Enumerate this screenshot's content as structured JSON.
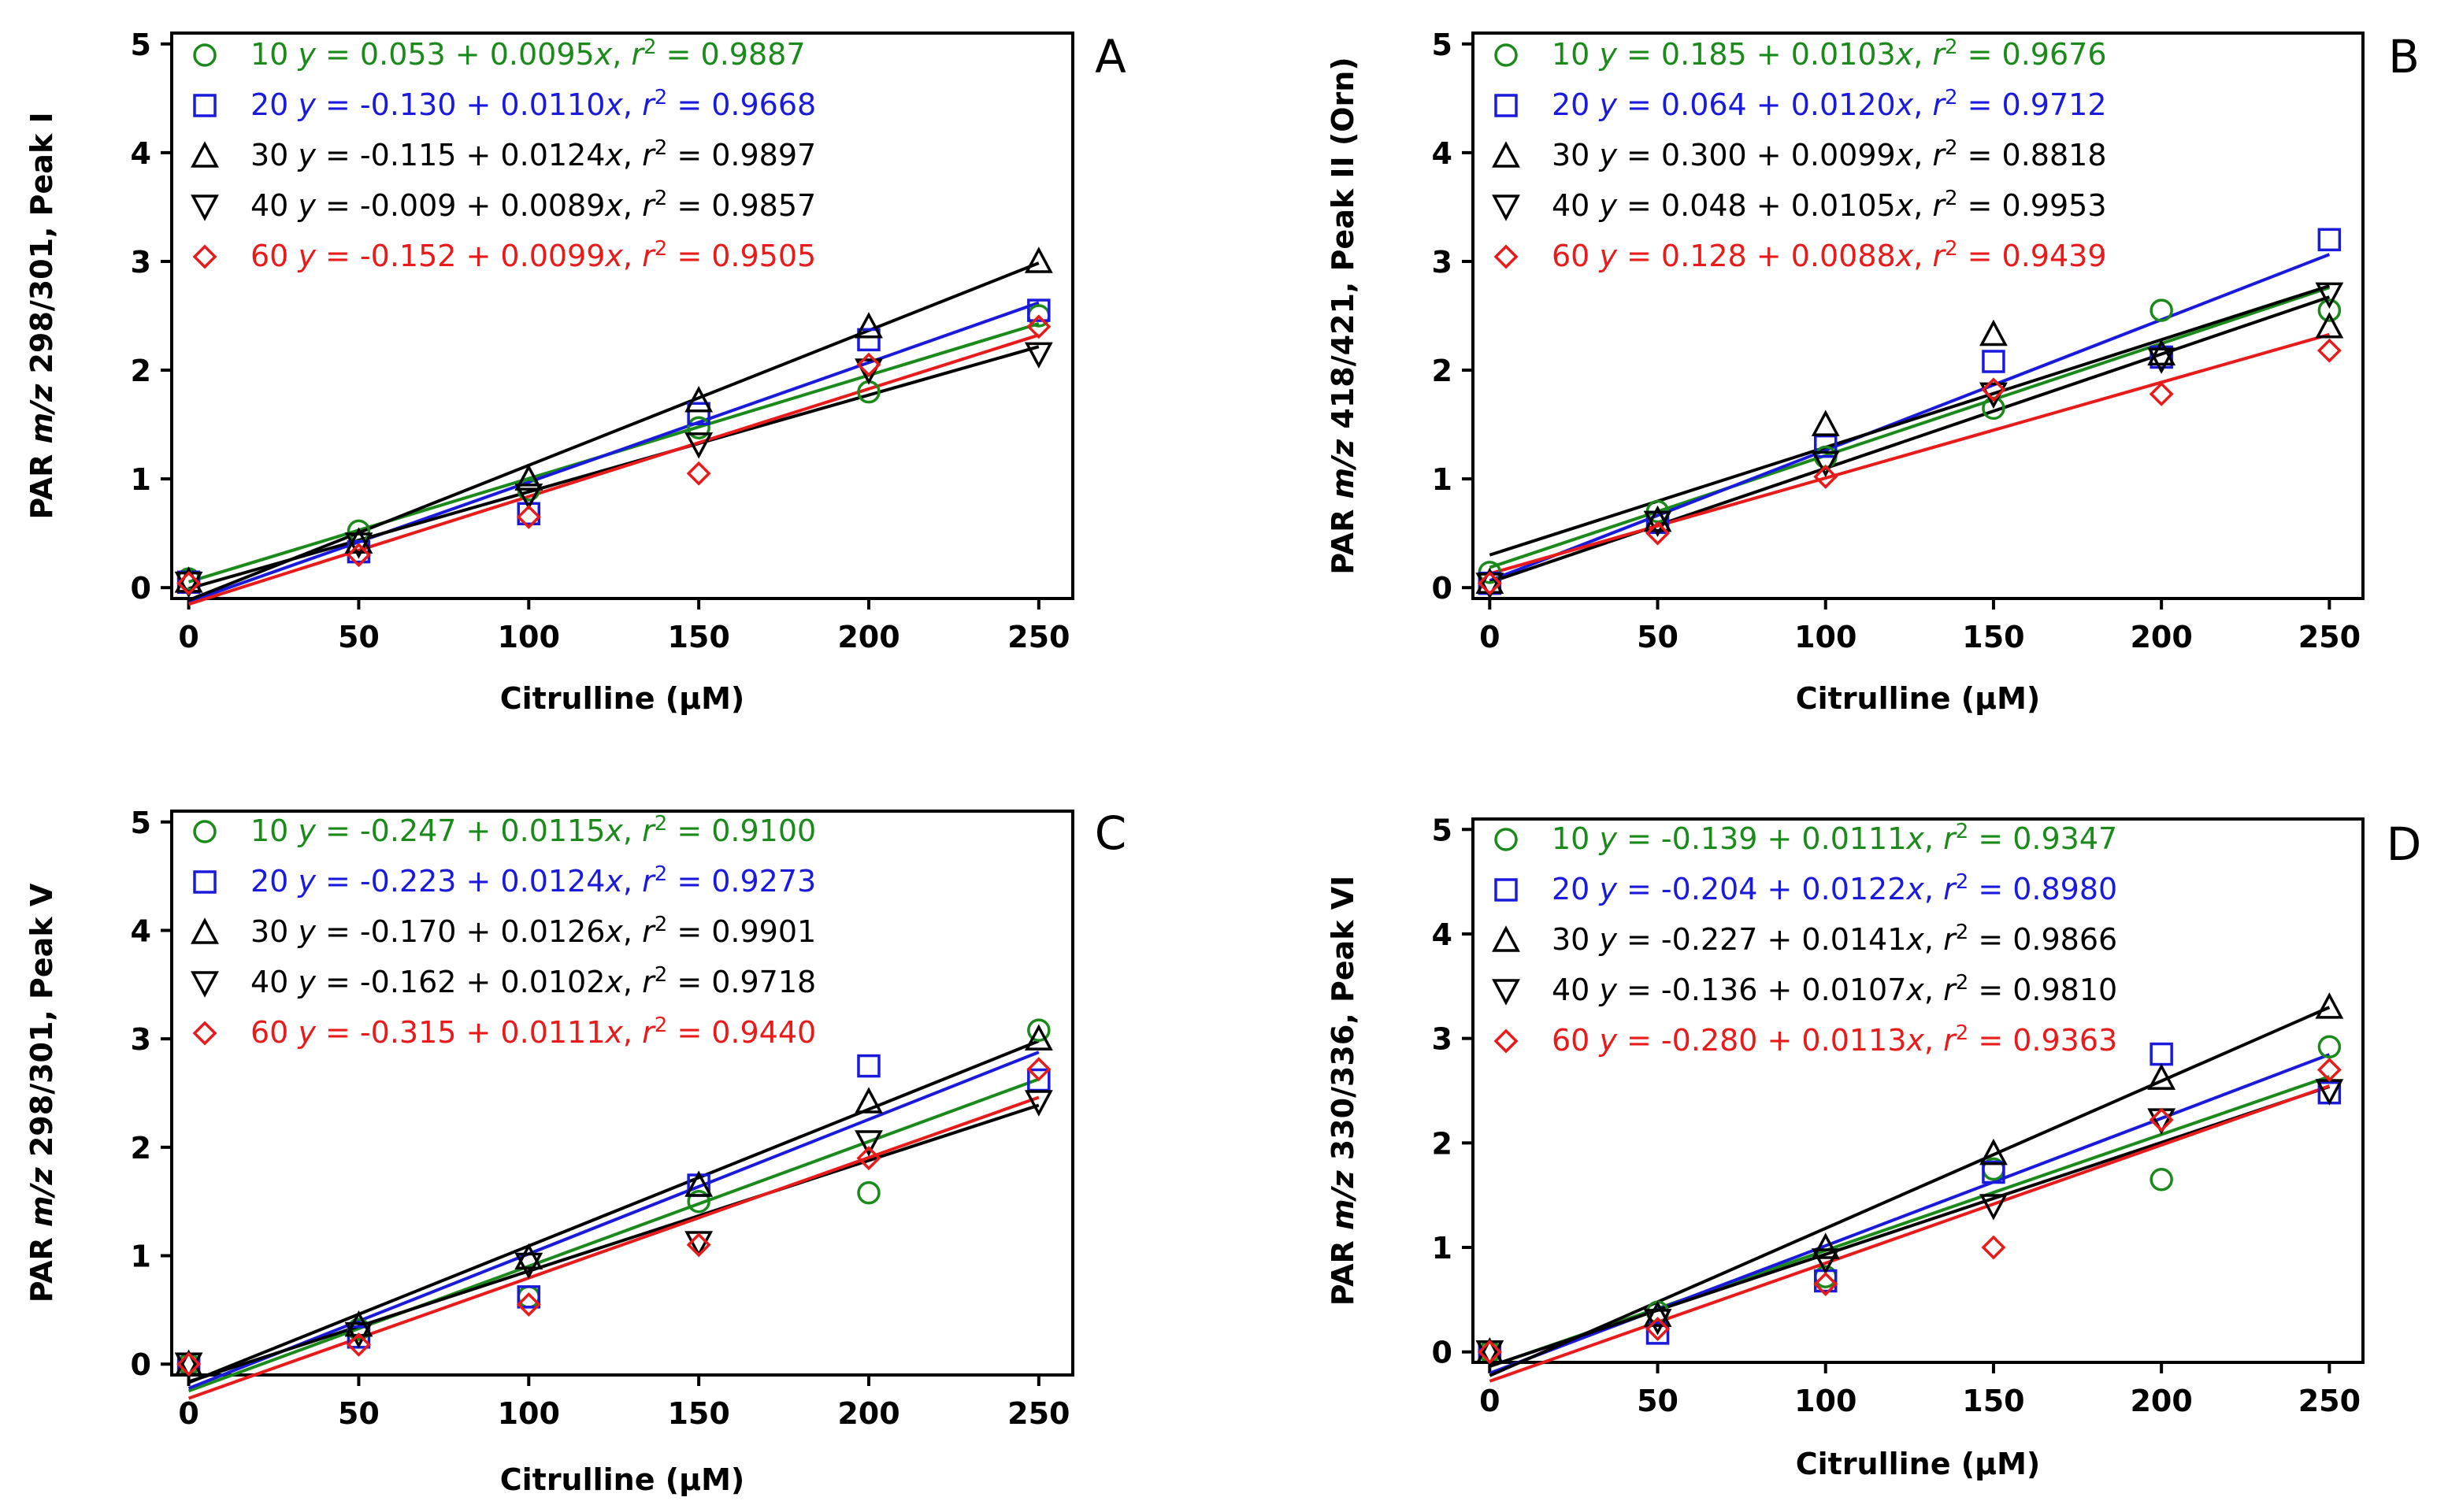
{
  "chart_data": [
    {
      "type": "scatter",
      "panel": "A",
      "xlabel": "Citrulline (µM)",
      "ylabel_parts": [
        "PAR ",
        "m/z",
        " 298/301, Peak I"
      ],
      "xlim": [
        -5,
        260
      ],
      "ylim": [
        -0.1,
        5.1
      ],
      "xticks": [
        0,
        50,
        100,
        150,
        200,
        250
      ],
      "yticks": [
        0,
        1,
        2,
        3,
        4,
        5
      ],
      "x": [
        0,
        50,
        100,
        150,
        200,
        250
      ],
      "series": [
        {
          "name": "10",
          "marker": "circle",
          "color": "#1a8a1a",
          "legend": {
            "label": "10",
            "intercept": "0.053",
            "slope": "0.0095",
            "r2": "0.9887"
          },
          "intercept": 0.053,
          "slope": 0.0095,
          "values": [
            0.08,
            0.52,
            0.9,
            1.47,
            1.8,
            2.5
          ]
        },
        {
          "name": "20",
          "marker": "square",
          "color": "#1a1adc",
          "legend": {
            "label": "20",
            "intercept": "-0.130",
            "slope": "0.0110",
            "r2": "0.9668"
          },
          "intercept": -0.13,
          "slope": 0.011,
          "values": [
            0.05,
            0.33,
            0.68,
            1.6,
            2.28,
            2.55
          ]
        },
        {
          "name": "30",
          "marker": "triangle-up",
          "color": "#000000",
          "legend": {
            "label": "30",
            "intercept": "-0.115",
            "slope": "0.0124",
            "r2": "0.9897"
          },
          "intercept": -0.115,
          "slope": 0.0124,
          "values": [
            0.06,
            0.42,
            1.0,
            1.72,
            2.4,
            3.0
          ]
        },
        {
          "name": "40",
          "marker": "triangle-down",
          "color": "#000000",
          "legend": {
            "label": "40",
            "intercept": "-0.009",
            "slope": "0.0089",
            "r2": "0.9857"
          },
          "intercept": -0.009,
          "slope": 0.0089,
          "values": [
            0.04,
            0.4,
            0.85,
            1.32,
            2.0,
            2.15
          ]
        },
        {
          "name": "60",
          "marker": "diamond",
          "color": "#e81a1a",
          "legend": {
            "label": "60",
            "intercept": "-0.152",
            "slope": "0.0099",
            "r2": "0.9505"
          },
          "intercept": -0.152,
          "slope": 0.0099,
          "values": [
            0.04,
            0.3,
            0.65,
            1.05,
            2.05,
            2.4
          ]
        }
      ]
    },
    {
      "type": "scatter",
      "panel": "B",
      "xlabel": "Citrulline (µM)",
      "ylabel_parts": [
        "PAR ",
        "m/z",
        " 418/421, Peak II (Orn)"
      ],
      "xlim": [
        -5,
        260
      ],
      "ylim": [
        -0.1,
        5.1
      ],
      "xticks": [
        0,
        50,
        100,
        150,
        200,
        250
      ],
      "yticks": [
        0,
        1,
        2,
        3,
        4,
        5
      ],
      "x": [
        0,
        50,
        100,
        150,
        200,
        250
      ],
      "series": [
        {
          "name": "10",
          "marker": "circle",
          "color": "#1a8a1a",
          "legend": {
            "label": "10",
            "intercept": "0.185",
            "slope": "0.0103",
            "r2": "0.9676"
          },
          "intercept": 0.185,
          "slope": 0.0103,
          "values": [
            0.14,
            0.7,
            1.2,
            1.65,
            2.55,
            2.55
          ]
        },
        {
          "name": "20",
          "marker": "square",
          "color": "#1a1adc",
          "legend": {
            "label": "20",
            "intercept": "0.064",
            "slope": "0.0120",
            "r2": "0.9712"
          },
          "intercept": 0.064,
          "slope": 0.012,
          "values": [
            0.04,
            0.6,
            1.3,
            2.08,
            2.12,
            3.2
          ]
        },
        {
          "name": "30",
          "marker": "triangle-up",
          "color": "#000000",
          "legend": {
            "label": "30",
            "intercept": "0.300",
            "slope": "0.0099",
            "r2": "0.8818"
          },
          "intercept": 0.3,
          "slope": 0.0099,
          "values": [
            0.05,
            0.62,
            1.5,
            2.33,
            2.15,
            2.4
          ]
        },
        {
          "name": "40",
          "marker": "triangle-down",
          "color": "#000000",
          "legend": {
            "label": "40",
            "intercept": "0.048",
            "slope": "0.0105",
            "r2": "0.9953"
          },
          "intercept": 0.048,
          "slope": 0.0105,
          "values": [
            0.03,
            0.6,
            1.15,
            1.78,
            2.1,
            2.7
          ]
        },
        {
          "name": "60",
          "marker": "diamond",
          "color": "#e81a1a",
          "legend": {
            "label": "60",
            "intercept": "0.128",
            "slope": "0.0088",
            "r2": "0.9439"
          },
          "intercept": 0.128,
          "slope": 0.0088,
          "values": [
            0.04,
            0.5,
            1.02,
            1.82,
            1.78,
            2.18
          ]
        }
      ]
    },
    {
      "type": "scatter",
      "panel": "C",
      "xlabel": "Citrulline (µM)",
      "ylabel_parts": [
        "PAR ",
        "m/z",
        " 298/301, Peak V"
      ],
      "xlim": [
        -5,
        260
      ],
      "ylim": [
        -0.1,
        5.1
      ],
      "xticks": [
        0,
        50,
        100,
        150,
        200,
        250
      ],
      "yticks": [
        0,
        1,
        2,
        3,
        4,
        5
      ],
      "x": [
        0,
        50,
        100,
        150,
        200,
        250
      ],
      "series": [
        {
          "name": "10",
          "marker": "circle",
          "color": "#1a8a1a",
          "legend": {
            "label": "10",
            "intercept": "-0.247",
            "slope": "0.0115",
            "r2": "0.9100"
          },
          "intercept": -0.247,
          "slope": 0.0115,
          "values": [
            0.0,
            0.32,
            0.62,
            1.5,
            1.58,
            3.08
          ]
        },
        {
          "name": "20",
          "marker": "square",
          "color": "#1a1adc",
          "legend": {
            "label": "20",
            "intercept": "-0.223",
            "slope": "0.0124",
            "r2": "0.9273"
          },
          "intercept": -0.223,
          "slope": 0.0124,
          "values": [
            0.0,
            0.25,
            0.62,
            1.65,
            2.75,
            2.62
          ]
        },
        {
          "name": "30",
          "marker": "triangle-up",
          "color": "#000000",
          "legend": {
            "label": "30",
            "intercept": "-0.170",
            "slope": "0.0126",
            "r2": "0.9901"
          },
          "intercept": -0.17,
          "slope": 0.0126,
          "values": [
            0.0,
            0.36,
            0.98,
            1.65,
            2.42,
            3.0
          ]
        },
        {
          "name": "40",
          "marker": "triangle-down",
          "color": "#000000",
          "legend": {
            "label": "40",
            "intercept": "-0.162",
            "slope": "0.0102",
            "r2": "0.9718"
          },
          "intercept": -0.162,
          "slope": 0.0102,
          "values": [
            0.0,
            0.28,
            0.92,
            1.12,
            2.05,
            2.42
          ]
        },
        {
          "name": "60",
          "marker": "diamond",
          "color": "#e81a1a",
          "legend": {
            "label": "60",
            "intercept": "-0.315",
            "slope": "0.0111",
            "r2": "0.9440"
          },
          "intercept": -0.315,
          "slope": 0.0111,
          "values": [
            0.0,
            0.18,
            0.55,
            1.1,
            1.9,
            2.72
          ]
        }
      ]
    },
    {
      "type": "scatter",
      "panel": "D",
      "xlabel": "Citrulline (µM)",
      "ylabel_parts": [
        "PAR ",
        "m/z",
        " 330/336, Peak VI"
      ],
      "xlim": [
        -5,
        260
      ],
      "ylim": [
        -0.1,
        5.1
      ],
      "xticks": [
        0,
        50,
        100,
        150,
        200,
        250
      ],
      "yticks": [
        0,
        1,
        2,
        3,
        4,
        5
      ],
      "x": [
        0,
        50,
        100,
        150,
        200,
        250
      ],
      "series": [
        {
          "name": "10",
          "marker": "circle",
          "color": "#1a8a1a",
          "legend": {
            "label": "10",
            "intercept": "-0.139",
            "slope": "0.0111",
            "r2": "0.9347"
          },
          "intercept": -0.139,
          "slope": 0.0111,
          "values": [
            0.0,
            0.38,
            0.72,
            1.75,
            1.65,
            2.92
          ]
        },
        {
          "name": "20",
          "marker": "square",
          "color": "#1a1adc",
          "legend": {
            "label": "20",
            "intercept": "-0.204",
            "slope": "0.0122",
            "r2": "0.8980"
          },
          "intercept": -0.204,
          "slope": 0.0122,
          "values": [
            0.0,
            0.18,
            0.68,
            1.72,
            2.85,
            2.48
          ]
        },
        {
          "name": "30",
          "marker": "triangle-up",
          "color": "#000000",
          "legend": {
            "label": "30",
            "intercept": "-0.227",
            "slope": "0.0141",
            "r2": "0.9866"
          },
          "intercept": -0.227,
          "slope": 0.0141,
          "values": [
            0.0,
            0.35,
            1.0,
            1.9,
            2.62,
            3.3
          ]
        },
        {
          "name": "40",
          "marker": "triangle-down",
          "color": "#000000",
          "legend": {
            "label": "40",
            "intercept": "-0.136",
            "slope": "0.0107",
            "r2": "0.9810"
          },
          "intercept": -0.136,
          "slope": 0.0107,
          "values": [
            0.0,
            0.3,
            0.88,
            1.4,
            2.22,
            2.5
          ]
        },
        {
          "name": "60",
          "marker": "diamond",
          "color": "#e81a1a",
          "legend": {
            "label": "60",
            "intercept": "-0.280",
            "slope": "0.0113",
            "r2": "0.9363"
          },
          "intercept": -0.28,
          "slope": 0.0113,
          "values": [
            0.0,
            0.22,
            0.65,
            1.0,
            2.22,
            2.7
          ]
        }
      ]
    }
  ]
}
